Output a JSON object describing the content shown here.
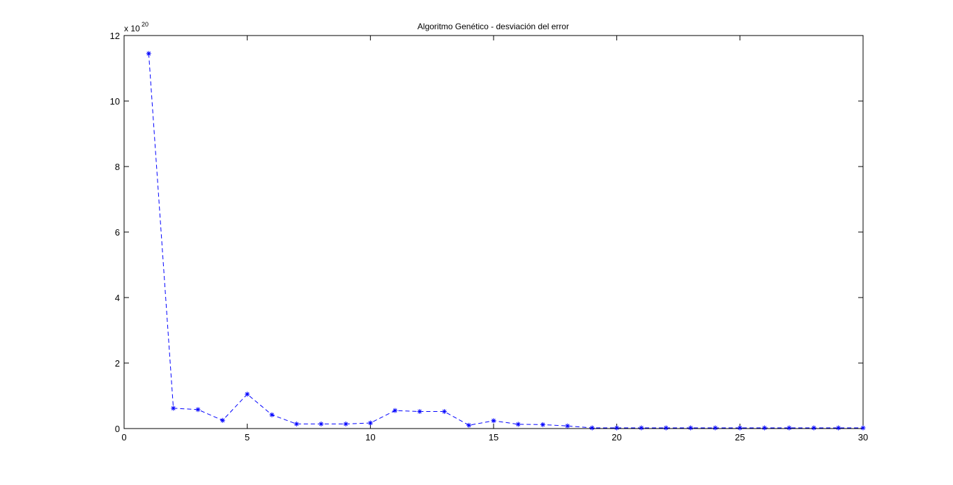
{
  "chart_data": {
    "type": "line",
    "title": "Algoritmo Genético  - desviación del error",
    "xlabel": "",
    "ylabel": "",
    "y_exponent_base": "x 10",
    "y_exponent_power": "20",
    "xlim": [
      0,
      30
    ],
    "ylim": [
      0,
      12
    ],
    "x_ticks": [
      0,
      5,
      10,
      15,
      20,
      25,
      30
    ],
    "x_tick_labels": [
      "0",
      "5",
      "10",
      "15",
      "20",
      "25",
      "30"
    ],
    "y_ticks": [
      0,
      2,
      4,
      6,
      8,
      10,
      12
    ],
    "y_tick_labels": [
      "0",
      "2",
      "4",
      "6",
      "8",
      "10",
      "12"
    ],
    "grid": false,
    "line_color": "#0000ff",
    "line_style": "dashed",
    "marker": "asterisk",
    "x": [
      1,
      2,
      3,
      4,
      5,
      6,
      7,
      8,
      9,
      10,
      11,
      12,
      13,
      14,
      15,
      16,
      17,
      18,
      19,
      20,
      21,
      22,
      23,
      24,
      25,
      26,
      27,
      28,
      29,
      30
    ],
    "values": [
      11.45,
      0.62,
      0.58,
      0.25,
      1.05,
      0.42,
      0.14,
      0.14,
      0.14,
      0.17,
      0.55,
      0.52,
      0.52,
      0.1,
      0.24,
      0.13,
      0.12,
      0.08,
      0.02,
      0.02,
      0.02,
      0.02,
      0.02,
      0.02,
      0.02,
      0.02,
      0.02,
      0.02,
      0.02,
      0.02
    ]
  }
}
